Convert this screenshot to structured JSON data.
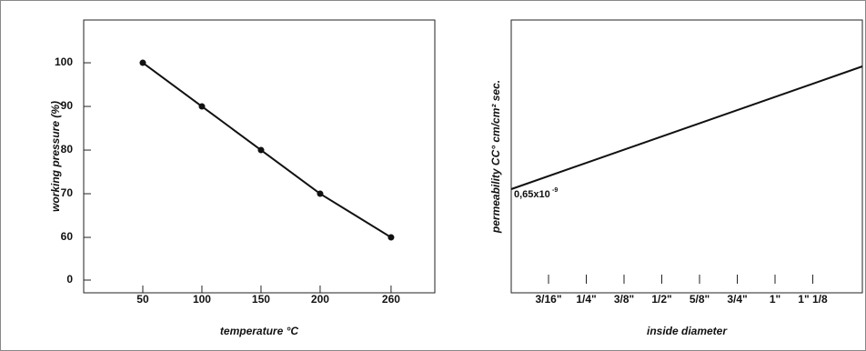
{
  "chart_data": [
    {
      "type": "line",
      "xlabel": "temperature °C",
      "ylabel": "working pressure (%)",
      "x": [
        50,
        100,
        150,
        200,
        260
      ],
      "values": [
        100,
        90,
        80,
        70,
        60
      ],
      "color": "#111111",
      "xlim": [
        0,
        297
      ],
      "xticks": [
        50,
        100,
        150,
        200,
        260
      ],
      "ylim": [
        47.3,
        109.8
      ],
      "yticks": [
        60,
        70,
        80,
        90,
        100
      ],
      "ybreak_label": "0"
    },
    {
      "type": "line",
      "xlabel": "inside diameter",
      "ylabel": "permeability CC° cm/cm² sec.",
      "categories": [
        "3/16\"",
        "1/4\"",
        "3/8\"",
        "1/2\"",
        "5/8\"",
        "3/4\"",
        "1\"",
        "1\" 1/8"
      ],
      "annotation": "0,65x10",
      "annotation_exponent": "-9"
    }
  ]
}
